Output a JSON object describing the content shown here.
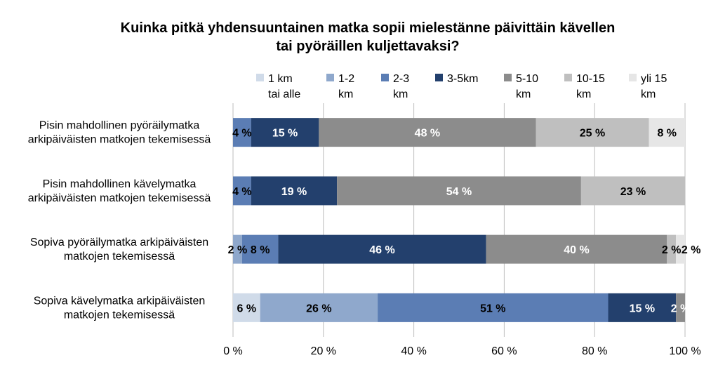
{
  "chart_data": {
    "type": "bar",
    "orientation": "horizontal-stacked",
    "title": "Kuinka pitkä yhdensuuntainen matka sopii mielestänne päivittäin kävellen tai pyöräillen kuljettavaksi?",
    "title_lines": [
      "Kuinka pitkä yhdensuuntainen matka sopii mielestänne päivittäin kävellen",
      "tai pyöräillen kuljettavaksi?"
    ],
    "categories": [
      "Pisin mahdollinen pyöräilymatka arkipäiväisten matkojen tekemisessä",
      "Pisin mahdollinen kävelymatka arkipäiväisten matkojen tekemisessä",
      "Sopiva pyöräilymatka arkipäiväisten matkojen tekemisessä",
      "Sopiva kävelymatka arkipäiväisten matkojen tekemisessä"
    ],
    "category_lines": [
      [
        "Pisin mahdollinen pyöräilymatka",
        "arkipäiväisten matkojen tekemisessä"
      ],
      [
        "Pisin mahdollinen kävelymatka",
        "arkipäiväisten matkojen tekemisessä"
      ],
      [
        "Sopiva pyöräilymatka arkipäiväisten",
        "matkojen tekemisessä"
      ],
      [
        "Sopiva kävelymatka arkipäiväisten",
        "matkojen tekemisessä"
      ]
    ],
    "series": [
      {
        "name": "1 km tai alle",
        "legend_lines": [
          "1 km",
          "tai alle"
        ],
        "color": "#d0dbe9",
        "label_color": "#000000",
        "values": [
          0,
          0,
          0,
          6
        ],
        "labels": [
          "",
          "",
          "",
          "6 %"
        ]
      },
      {
        "name": "1-2 km",
        "legend_lines": [
          "1-2",
          "km"
        ],
        "color": "#8fa8cc",
        "label_color": "#000000",
        "values": [
          0,
          0,
          2,
          26
        ],
        "labels": [
          "",
          "",
          "2 %",
          "26 %"
        ]
      },
      {
        "name": "2-3 km",
        "legend_lines": [
          "2-3",
          "km"
        ],
        "color": "#5b7db4",
        "label_color": "#000000",
        "values": [
          4,
          4,
          8,
          51
        ],
        "labels": [
          "4 %",
          "4 %",
          "8 %",
          "51 %"
        ]
      },
      {
        "name": "3-5km",
        "legend_lines": [
          "3-5km"
        ],
        "color": "#23406d",
        "label_color": "#ffffff",
        "values": [
          15,
          19,
          46,
          15
        ],
        "labels": [
          "15 %",
          "19 %",
          "46 %",
          "15 %"
        ]
      },
      {
        "name": "5-10 km",
        "legend_lines": [
          "5-10",
          "km"
        ],
        "color": "#8c8c8c",
        "label_color": "#ffffff",
        "values": [
          48,
          54,
          40,
          2
        ],
        "labels": [
          "48 %",
          "54 %",
          "40 %",
          "2 %"
        ]
      },
      {
        "name": "10-15 km",
        "legend_lines": [
          "10-15",
          "km"
        ],
        "color": "#bfbfbf",
        "label_color": "#000000",
        "values": [
          25,
          23,
          2,
          0
        ],
        "labels": [
          "25 %",
          "23 %",
          "2 %",
          ""
        ]
      },
      {
        "name": "yli 15 km",
        "legend_lines": [
          "yli 15",
          "km"
        ],
        "color": "#e6e6e6",
        "label_color": "#000000",
        "values": [
          8,
          0,
          2,
          0
        ],
        "labels": [
          "8 %",
          "",
          "2 %",
          ""
        ]
      }
    ],
    "xlim": [
      0,
      100
    ],
    "x_ticks": [
      0,
      20,
      40,
      60,
      80,
      100
    ],
    "x_tick_labels": [
      "0 %",
      "20 %",
      "40 %",
      "60 %",
      "80 %",
      "100 %"
    ],
    "grid": true,
    "legend_position": "top"
  }
}
